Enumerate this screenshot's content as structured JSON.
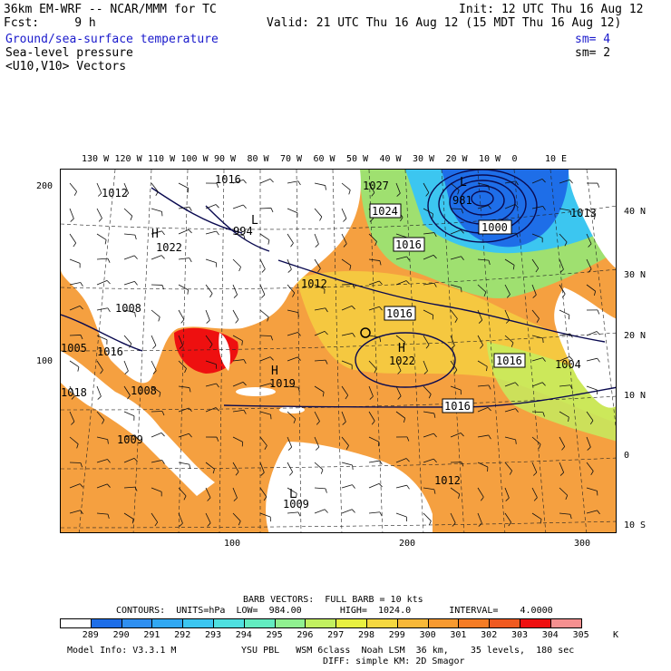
{
  "header": {
    "model": "36km EM-WRF -- NCAR/MMM for TC",
    "init": "Init: 12 UTC Thu 16 Aug 12",
    "fcst": "Fcst:     9 h",
    "valid": "Valid: 21 UTC Thu 16 Aug 12 (15 MDT Thu 16 Aug 12)"
  },
  "fields": [
    {
      "label": "Ground/sea-surface temperature",
      "sm": "sm= 4",
      "color": "#1a1acc"
    },
    {
      "label": "Sea-level pressure",
      "sm": "sm= 2",
      "color": "#000000"
    },
    {
      "label": "<U10,V10> Vectors",
      "sm": "",
      "color": "#000000"
    }
  ],
  "top_lon_ticks": [
    "130 W",
    "120 W",
    "110 W",
    "100 W",
    "90 W",
    "80 W",
    "70 W",
    "60 W",
    "50 W",
    "40 W",
    "30 W",
    "20 W",
    "10 W",
    "0",
    "10 E"
  ],
  "right_lat_ticks": [
    "40 N",
    "30 N",
    "20 N",
    "10 N",
    "0",
    "10 S"
  ],
  "left_ticks": [
    "200",
    "100"
  ],
  "bottom_ticks": [
    "100",
    "200",
    "300"
  ],
  "pressure_labels": {
    "boxed": [
      "1024",
      "1016",
      "1000",
      "1016",
      "1016",
      "1016"
    ],
    "plain": [
      "1016",
      "994",
      "1022",
      "1012",
      "1008",
      "1022",
      "1019",
      "1008",
      "1009",
      "1012",
      "981",
      "1013",
      "1004",
      "1018",
      "1009",
      "1027",
      "1005",
      "1016",
      "1012"
    ],
    "highs_lows": [
      "H",
      "H",
      "L",
      "L",
      "H",
      "L"
    ]
  },
  "footer": {
    "barb": "BARB VECTORS:  FULL BARB = 10 kts",
    "contours": "CONTOURS:  UNITS=hPa  LOW=  984.00       HIGH=  1024.0       INTERVAL=    4.0000",
    "model_info": "Model Info: V3.3.1 M",
    "physics": "YSU PBL   WSM 6class  Noah LSM  36 km,    35 levels,  180 sec",
    "physics2": "DIFF: simple KM: 2D Smagor",
    "unit": "K"
  },
  "colorbar": {
    "labels": [
      "289",
      "290",
      "291",
      "292",
      "293",
      "294",
      "295",
      "296",
      "297",
      "298",
      "299",
      "300",
      "301",
      "302",
      "303",
      "304",
      "305"
    ],
    "colors": [
      "#ffffff",
      "#1e6ee8",
      "#2f8ff0",
      "#31a8f2",
      "#3cc6f0",
      "#4fe0e0",
      "#63ecc0",
      "#90f090",
      "#c2f060",
      "#e8f040",
      "#f5d840",
      "#f8b838",
      "#f89a30",
      "#f57c25",
      "#f05a20",
      "#ee1010",
      "#f59090"
    ]
  }
}
